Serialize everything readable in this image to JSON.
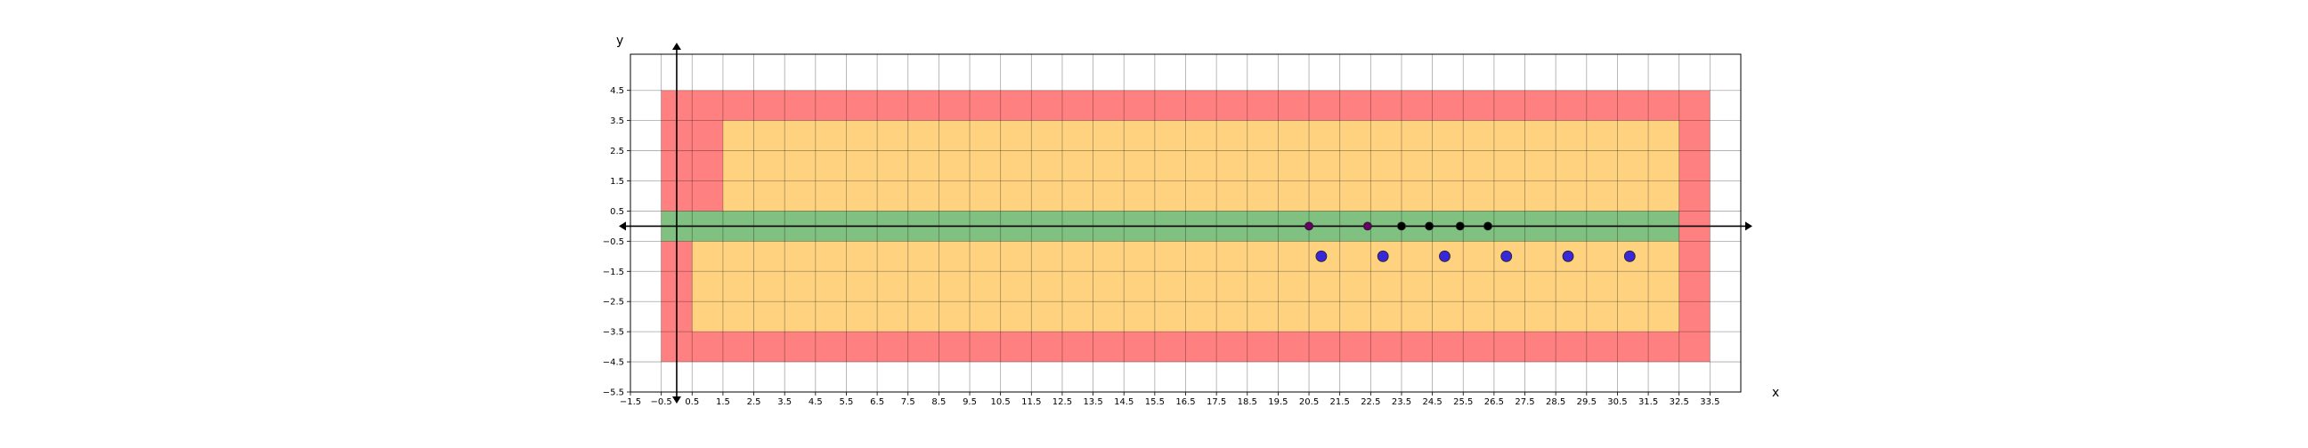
{
  "chart_data": {
    "type": "scatter",
    "title": "",
    "xlabel": "x",
    "ylabel": "y",
    "xlim": [
      -1.5,
      34.5
    ],
    "ylim": [
      -5.5,
      5.7
    ],
    "grid": true,
    "x_ticks": [
      "−1.5",
      "−0.5",
      "0.5",
      "1.5",
      "2.5",
      "3.5",
      "4.5",
      "5.5",
      "6.5",
      "7.5",
      "8.5",
      "9.5",
      "10.5",
      "11.5",
      "12.5",
      "13.5",
      "14.5",
      "15.5",
      "16.5",
      "17.5",
      "18.5",
      "19.5",
      "20.5",
      "21.5",
      "22.5",
      "23.5",
      "24.5",
      "25.5",
      "26.5",
      "27.5",
      "28.5",
      "29.5",
      "30.5",
      "31.5",
      "32.5",
      "33.5"
    ],
    "x_tick_values": [
      -1.5,
      -0.5,
      0.5,
      1.5,
      2.5,
      3.5,
      4.5,
      5.5,
      6.5,
      7.5,
      8.5,
      9.5,
      10.5,
      11.5,
      12.5,
      13.5,
      14.5,
      15.5,
      16.5,
      17.5,
      18.5,
      19.5,
      20.5,
      21.5,
      22.5,
      23.5,
      24.5,
      25.5,
      26.5,
      27.5,
      28.5,
      29.5,
      30.5,
      31.5,
      32.5,
      33.5
    ],
    "y_ticks": [
      "4.5",
      "3.5",
      "2.5",
      "1.5",
      "0.5",
      "−0.5",
      "−1.5",
      "−2.5",
      "−3.5",
      "−4.5",
      "−5.5"
    ],
    "y_tick_values": [
      4.5,
      3.5,
      2.5,
      1.5,
      0.5,
      -0.5,
      -1.5,
      -2.5,
      -3.5,
      -4.5,
      -5.5
    ],
    "regions": [
      {
        "name": "red-zone",
        "color": "#ff8080",
        "x": [
          -0.5,
          33.5
        ],
        "y": [
          -4.5,
          4.5
        ]
      },
      {
        "name": "orange-upper",
        "color": "#ffd280",
        "x": [
          1.5,
          32.5
        ],
        "y": [
          0.5,
          3.5
        ]
      },
      {
        "name": "orange-lower",
        "color": "#ffd280",
        "x": [
          0.5,
          32.5
        ],
        "y": [
          -3.5,
          -0.5
        ]
      },
      {
        "name": "green-lane",
        "color": "#80c080",
        "x": [
          -0.5,
          32.5
        ],
        "y": [
          -0.5,
          0.5
        ]
      }
    ],
    "series": [
      {
        "color": "#660066",
        "marker": "circle-small",
        "points": [
          [
            20.5,
            0
          ],
          [
            22.4,
            0
          ]
        ]
      },
      {
        "color": "#000000",
        "marker": "circle-small",
        "points": [
          [
            23.5,
            0
          ],
          [
            24.4,
            0
          ],
          [
            25.4,
            0
          ],
          [
            26.3,
            0
          ]
        ]
      },
      {
        "color": "#3a28d8",
        "marker": "circle-large",
        "points": [
          [
            20.9,
            -1
          ],
          [
            22.9,
            -1
          ],
          [
            24.9,
            -1
          ],
          [
            26.9,
            -1
          ],
          [
            28.9,
            -1
          ],
          [
            30.9,
            -1
          ]
        ]
      }
    ]
  }
}
